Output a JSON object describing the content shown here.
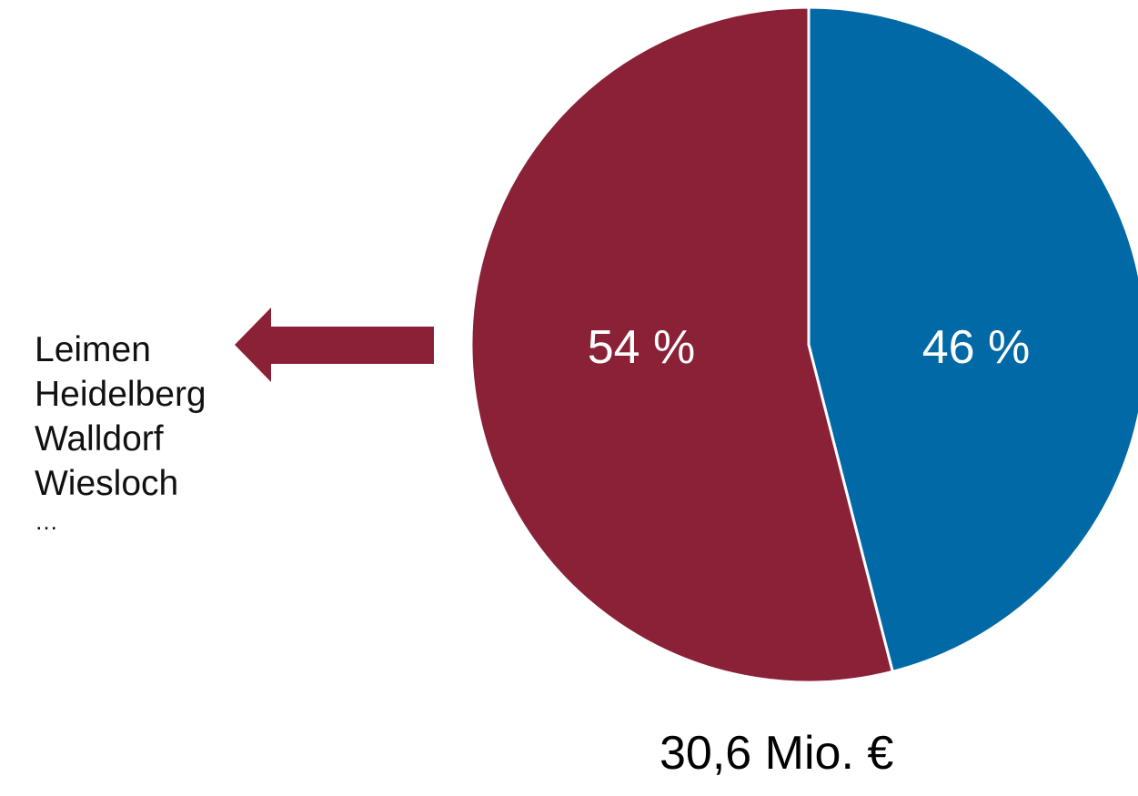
{
  "chart_data": {
    "type": "pie",
    "slices": [
      {
        "label": "54 %",
        "value": 54,
        "color": "#8a2137"
      },
      {
        "label": "46 %",
        "value": 46,
        "color": "#0169a6"
      }
    ],
    "label_color": "#ffffff",
    "total_label": "30,6 Mio. €",
    "legend_arrow_color": "#8a2137",
    "annotation_items": [
      "Leimen",
      "Heidelberg",
      "Walldorf",
      "Wiesloch"
    ],
    "annotation_more": "…"
  }
}
